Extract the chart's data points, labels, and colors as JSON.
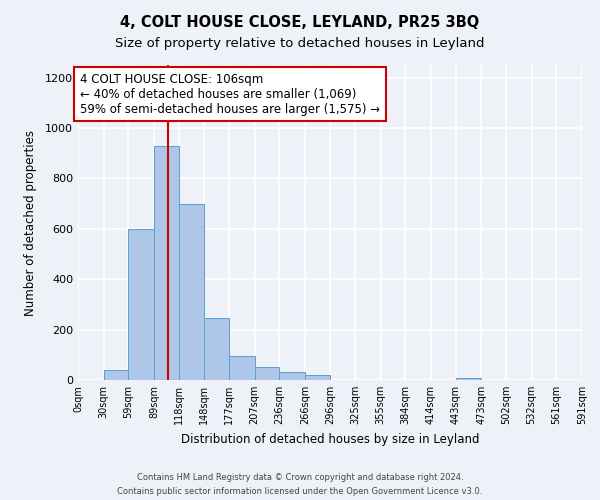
{
  "title": "4, COLT HOUSE CLOSE, LEYLAND, PR25 3BQ",
  "subtitle": "Size of property relative to detached houses in Leyland",
  "xlabel": "Distribution of detached houses by size in Leyland",
  "ylabel": "Number of detached properties",
  "bar_edges": [
    0,
    30,
    59,
    89,
    118,
    148,
    177,
    207,
    236,
    266,
    296,
    325,
    355,
    384,
    414,
    443,
    473,
    502,
    532,
    561,
    591
  ],
  "bar_heights": [
    0,
    38,
    600,
    930,
    700,
    245,
    95,
    52,
    30,
    18,
    0,
    0,
    0,
    0,
    0,
    8,
    0,
    0,
    0,
    0
  ],
  "bar_color": "#aec6e8",
  "bar_edge_color": "#5a9fd4",
  "property_size": 106,
  "vline_color": "#cc0000",
  "annotation_line1": "4 COLT HOUSE CLOSE: 106sqm",
  "annotation_line2": "← 40% of detached houses are smaller (1,069)",
  "annotation_line3": "59% of semi-detached houses are larger (1,575) →",
  "annotation_box_color": "#cc0000",
  "annotation_box_facecolor": "white",
  "ylim": [
    0,
    1250
  ],
  "yticks": [
    0,
    200,
    400,
    600,
    800,
    1000,
    1200
  ],
  "tick_labels": [
    "0sqm",
    "30sqm",
    "59sqm",
    "89sqm",
    "118sqm",
    "148sqm",
    "177sqm",
    "207sqm",
    "236sqm",
    "266sqm",
    "296sqm",
    "325sqm",
    "355sqm",
    "384sqm",
    "414sqm",
    "443sqm",
    "473sqm",
    "502sqm",
    "532sqm",
    "561sqm",
    "591sqm"
  ],
  "footer1": "Contains HM Land Registry data © Crown copyright and database right 2024.",
  "footer2": "Contains public sector information licensed under the Open Government Licence v3.0.",
  "background_color": "#eef2f8",
  "grid_color": "#ffffff",
  "title_fontsize": 10.5,
  "subtitle_fontsize": 9.5,
  "annotation_fontsize": 8.5,
  "ylabel_fontsize": 8.5,
  "xlabel_fontsize": 8.5
}
